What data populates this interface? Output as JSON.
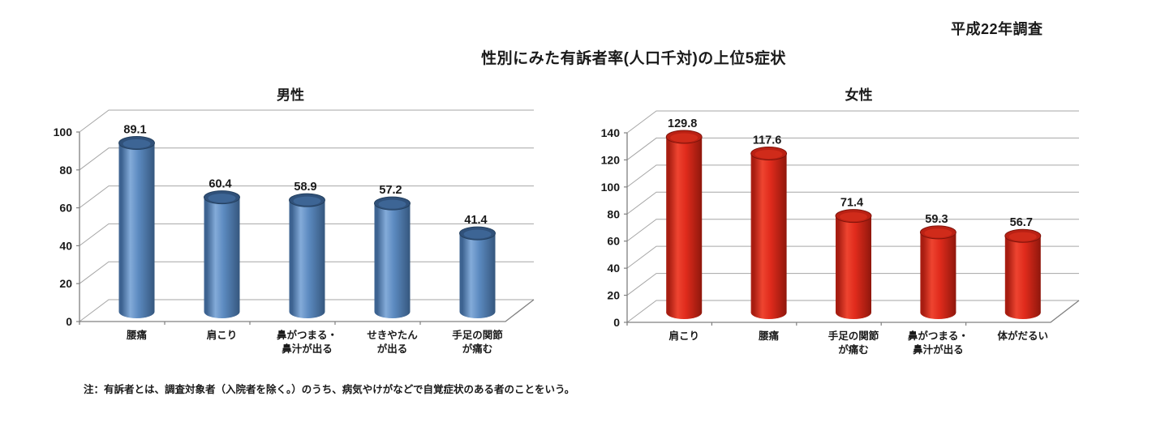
{
  "survey_label": "平成22年調査",
  "main_title": "性別にみた有訴者率(人口千対)の上位5症状",
  "note": "注：有訴者とは、調査対象者（入院者を除く。）のうち、病気やけがなどで自覚症状のある者のことをいう。",
  "axis_color": "#808080",
  "grid_color": "#a6a6a6",
  "text_color": "#1a1a1a",
  "chart_data": [
    {
      "type": "bar",
      "style": "3d-cylinder",
      "title": "男性",
      "categories": [
        [
          "腰痛"
        ],
        [
          "肩こり"
        ],
        [
          "鼻がつまる・",
          "鼻汁が出る"
        ],
        [
          "せきやたん",
          "が出る"
        ],
        [
          "手足の関節",
          "が痛む"
        ]
      ],
      "values": [
        89.1,
        60.4,
        58.9,
        57.2,
        41.4
      ],
      "value_labels": [
        "89.1",
        "60.4",
        "58.9",
        "57.2",
        "41.4"
      ],
      "xlabel": "",
      "ylabel": "",
      "ylim": [
        0,
        100
      ],
      "tick_step": 20,
      "tick_labels": [
        "0",
        "20",
        "40",
        "60",
        "80",
        "100"
      ],
      "grid": true,
      "legend": "none",
      "colors": {
        "body_edge_dark": "#35577e",
        "body_dark": "#3d6391",
        "body_mid": "#5c8ac0",
        "body_light": "#83abd9",
        "top_fill": "#30517a",
        "top_inner": "#3d6595",
        "outline": "#24405f"
      }
    },
    {
      "type": "bar",
      "style": "3d-cylinder",
      "title": "女性",
      "categories": [
        [
          "肩こり"
        ],
        [
          "腰痛"
        ],
        [
          "手足の関節",
          "が痛む"
        ],
        [
          "鼻がつまる・",
          "鼻汁が出る"
        ],
        [
          "体がだるい"
        ]
      ],
      "values": [
        129.8,
        117.6,
        71.4,
        59.3,
        56.7
      ],
      "value_labels": [
        "129.8",
        "117.6",
        "71.4",
        "59.3",
        "56.7"
      ],
      "xlabel": "",
      "ylabel": "",
      "ylim": [
        0,
        140
      ],
      "tick_step": 20,
      "tick_labels": [
        "0",
        "20",
        "40",
        "60",
        "80",
        "100",
        "120",
        "140"
      ],
      "grid": true,
      "legend": "none",
      "colors": {
        "body_edge_dark": "#8f170c",
        "body_dark": "#a81d11",
        "body_mid": "#e02b1c",
        "body_light": "#ee4430",
        "top_fill": "#ba2114",
        "top_inner": "#d02b1a",
        "outline": "#7d140b"
      }
    }
  ]
}
